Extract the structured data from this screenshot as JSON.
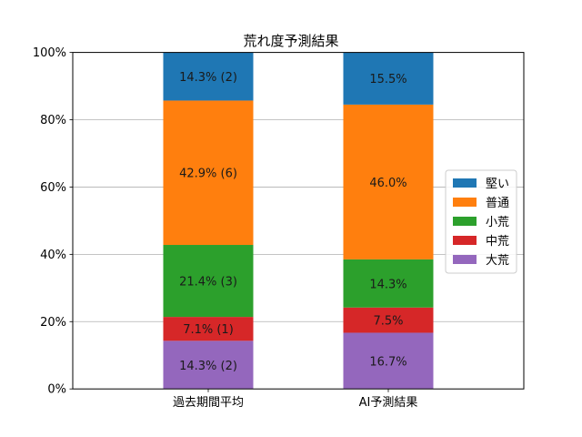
{
  "chart_data": {
    "type": "bar",
    "stacked": true,
    "title": "荒れ度予測結果",
    "xlabel": "",
    "ylabel": "",
    "categories": [
      "過去期間平均",
      "AI予測結果"
    ],
    "ylim": [
      0,
      100
    ],
    "yticks": [
      "0%",
      "20%",
      "40%",
      "60%",
      "80%",
      "100%"
    ],
    "grid": "y",
    "legend_position": "right",
    "series": [
      {
        "name": "大荒",
        "color": "#9467bd",
        "values": [
          14.3,
          16.7
        ],
        "labels": [
          "14.3% (2)",
          "16.7%"
        ]
      },
      {
        "name": "中荒",
        "color": "#d62728",
        "values": [
          7.1,
          7.5
        ],
        "labels": [
          "7.1% (1)",
          "7.5%"
        ]
      },
      {
        "name": "小荒",
        "color": "#2ca02c",
        "values": [
          21.4,
          14.3
        ],
        "labels": [
          "21.4% (3)",
          "14.3%"
        ]
      },
      {
        "name": "普通",
        "color": "#ff7f0e",
        "values": [
          42.9,
          46.0
        ],
        "labels": [
          "42.9% (6)",
          "46.0%"
        ]
      },
      {
        "name": "堅い",
        "color": "#1f77b4",
        "values": [
          14.3,
          15.5
        ],
        "labels": [
          "14.3% (2)",
          "15.5%"
        ]
      }
    ],
    "legend_order": [
      "堅い",
      "普通",
      "小荒",
      "中荒",
      "大荒"
    ]
  }
}
